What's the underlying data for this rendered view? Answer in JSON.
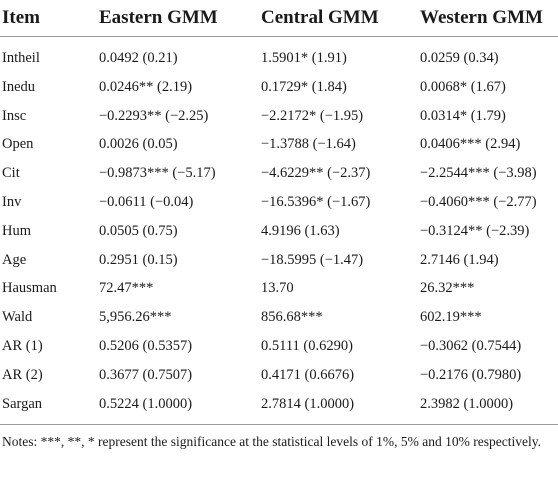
{
  "table": {
    "headers": [
      "Item",
      "Eastern GMM",
      "Central GMM",
      "Western GMM"
    ],
    "rows": [
      [
        "Intheil",
        "0.0492 (0.21)",
        "1.5901* (1.91)",
        "0.0259 (0.34)"
      ],
      [
        "Inedu",
        "0.0246** (2.19)",
        "0.1729* (1.84)",
        "0.0068* (1.67)"
      ],
      [
        "Insc",
        "−0.2293** (−2.25)",
        "−2.2172* (−1.95)",
        "0.0314* (1.79)"
      ],
      [
        "Open",
        "0.0026 (0.05)",
        "−1.3788 (−1.64)",
        "0.0406*** (2.94)"
      ],
      [
        "Cit",
        "−0.9873*** (−5.17)",
        "−4.6229** (−2.37)",
        "−2.2544*** (−3.98)"
      ],
      [
        "Inv",
        "−0.0611 (−0.04)",
        "−16.5396* (−1.67)",
        "−0.4060*** (−2.77)"
      ],
      [
        "Hum",
        "0.0505 (0.75)",
        "4.9196 (1.63)",
        "−0.3124** (−2.39)"
      ],
      [
        "Age",
        "0.2951 (0.15)",
        "−18.5995 (−1.47)",
        "2.7146 (1.94)"
      ],
      [
        "Hausman",
        "72.47***",
        "13.70",
        "26.32***"
      ],
      [
        "Wald",
        "5,956.26***",
        "856.68***",
        "602.19***"
      ],
      [
        "AR (1)",
        "0.5206 (0.5357)",
        "0.5111 (0.6290)",
        "−0.3062 (0.7544)"
      ],
      [
        "AR (2)",
        "0.3677 (0.7507)",
        "0.4171 (0.6676)",
        "−0.2176 (0.7980)"
      ],
      [
        "Sargan",
        "0.5224 (1.0000)",
        "2.7814 (1.0000)",
        "2.3982 (1.0000)"
      ]
    ]
  },
  "notes": "Notes: ***, **, * represent the significance at the statistical levels of 1%, 5% and 10% respectively."
}
